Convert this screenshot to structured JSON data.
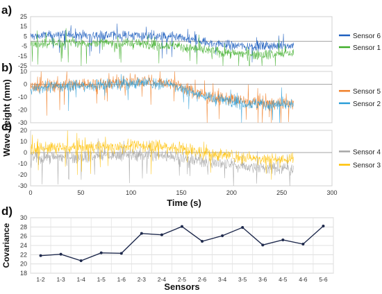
{
  "figure": {
    "shared_ylabel": "Wave height (mm)",
    "shared_xlabel": "Time (s)",
    "x_ticks": [
      0,
      50,
      100,
      150,
      200,
      250,
      300
    ]
  },
  "chart_data": [
    {
      "panel": "a)",
      "type": "line",
      "xlim": [
        0,
        300
      ],
      "ylim": [
        -25,
        25
      ],
      "y_ticks": [
        -25,
        -15,
        -5,
        5,
        15,
        25
      ],
      "grid": false,
      "legend_position": "right",
      "series": [
        {
          "name": "Sensor 6",
          "color": "#1f5fbf",
          "x": [
            0,
            20,
            40,
            60,
            80,
            100,
            120,
            140,
            160,
            180,
            200,
            220,
            240,
            262
          ],
          "y": [
            5,
            6,
            7,
            6,
            6,
            6,
            5,
            4,
            1,
            -2,
            -4,
            -5,
            -5,
            -4
          ]
        },
        {
          "name": "Sensor 1",
          "color": "#3fae2a",
          "x": [
            0,
            20,
            40,
            60,
            80,
            100,
            120,
            140,
            160,
            180,
            200,
            220,
            240,
            262
          ],
          "y": [
            -3,
            -2,
            -1,
            -2,
            -2,
            -2,
            -3,
            -4,
            -7,
            -10,
            -12,
            -13,
            -13,
            -12
          ]
        }
      ]
    },
    {
      "panel": "b)",
      "type": "line",
      "xlim": [
        0,
        300
      ],
      "ylim": [
        -30,
        10
      ],
      "y_ticks": [
        -30,
        -20,
        -10,
        0,
        10
      ],
      "grid": false,
      "legend_position": "right",
      "series": [
        {
          "name": "Sensor 5",
          "color": "#f07e26",
          "x": [
            0,
            20,
            40,
            60,
            80,
            100,
            120,
            140,
            160,
            180,
            200,
            220,
            240,
            262
          ],
          "y": [
            -2,
            -1,
            0,
            0,
            1,
            2,
            2,
            1,
            -5,
            -10,
            -12,
            -14,
            -15,
            -15
          ]
        },
        {
          "name": "Sensor 2",
          "color": "#2e9fd8",
          "x": [
            0,
            20,
            40,
            60,
            80,
            100,
            120,
            140,
            160,
            180,
            200,
            220,
            240,
            262
          ],
          "y": [
            -3,
            -2,
            -1,
            -1,
            0,
            1,
            1,
            0,
            -6,
            -11,
            -13,
            -15,
            -16,
            -16
          ]
        }
      ]
    },
    {
      "panel": "c)",
      "type": "line",
      "xlim": [
        0,
        300
      ],
      "ylim": [
        -30,
        20
      ],
      "y_ticks": [
        -30,
        -20,
        -10,
        0,
        10,
        20
      ],
      "grid": false,
      "legend_position": "right",
      "series": [
        {
          "name": "Sensor 4",
          "color": "#a6a6a6",
          "x": [
            0,
            20,
            40,
            60,
            80,
            100,
            120,
            140,
            160,
            180,
            200,
            220,
            240,
            262
          ],
          "y": [
            -5,
            -4,
            -4,
            -3,
            -3,
            -2,
            -2,
            -3,
            -6,
            -9,
            -11,
            -13,
            -14,
            -14
          ]
        },
        {
          "name": "Sensor 3",
          "color": "#ffc000",
          "x": [
            0,
            20,
            40,
            60,
            80,
            100,
            120,
            140,
            160,
            180,
            200,
            220,
            240,
            262
          ],
          "y": [
            3,
            4,
            4,
            5,
            5,
            6,
            6,
            5,
            2,
            -1,
            -3,
            -5,
            -6,
            -6
          ]
        }
      ]
    },
    {
      "panel": "d)",
      "type": "line",
      "xlabel": "Sensors",
      "ylabel": "Covariance",
      "ylim": [
        18,
        30
      ],
      "y_ticks": [
        18,
        20,
        22,
        24,
        26,
        28,
        30
      ],
      "grid": true,
      "categories": [
        "1-2",
        "1-3",
        "1-4",
        "1-5",
        "1-6",
        "2-3",
        "2-4",
        "2-5",
        "2-6",
        "3-4",
        "3-5",
        "3-6",
        "4-5",
        "4-6",
        "5-6"
      ],
      "series": [
        {
          "color": "#1f2a4d",
          "values": [
            21.8,
            22.1,
            20.7,
            22.4,
            22.3,
            26.6,
            26.3,
            28.1,
            24.9,
            26.1,
            27.9,
            24.1,
            25.2,
            24.3,
            28.2
          ]
        }
      ]
    }
  ]
}
